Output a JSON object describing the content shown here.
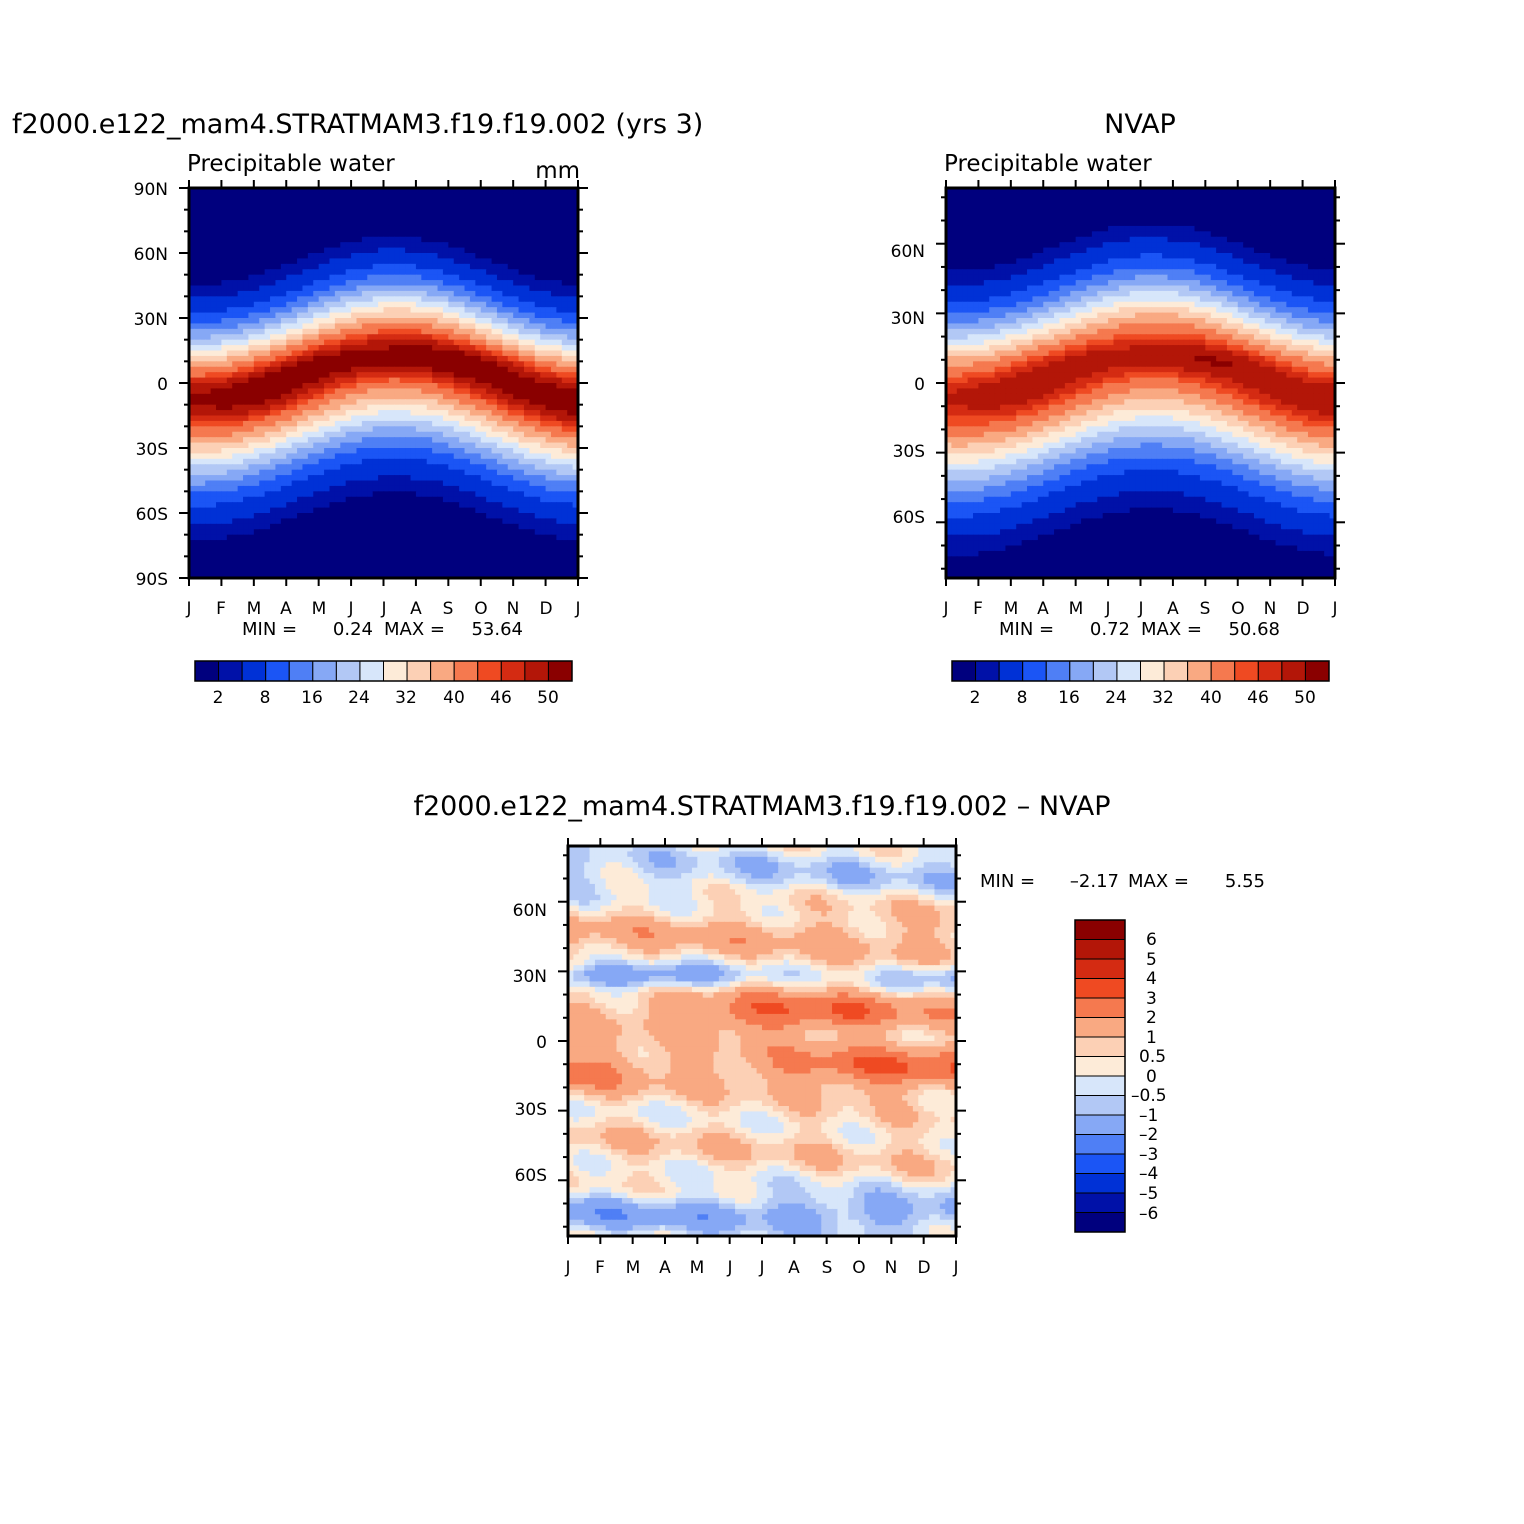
{
  "colors": {
    "panel_palette": [
      "#00007e",
      "#0011a8",
      "#0031d6",
      "#1b55f5",
      "#4f7ff5",
      "#86a8f5",
      "#b2c8f5",
      "#d7e6fa",
      "#fdebd8",
      "#fcd0b5",
      "#f9a982",
      "#f5794f",
      "#ef4a22",
      "#d42b12",
      "#b31608",
      "#8a0000"
    ],
    "diff_palette": [
      "#00007e",
      "#0011a8",
      "#0031d6",
      "#1b55f5",
      "#4f7ff5",
      "#86a8f5",
      "#b2c8f5",
      "#d7e6fa",
      "#fdebd8",
      "#fcd0b5",
      "#f9a982",
      "#f5794f",
      "#ef4a22",
      "#d42b12",
      "#b31608",
      "#8a0000"
    ]
  },
  "chart_data": [
    {
      "type": "heatmap",
      "id": "model",
      "title": "f2000.e122_mam4.STRATMAM3.f19.f19.002 (yrs 3)",
      "subtitle": "Precipitable  water",
      "units": "mm",
      "x_tick_labels": [
        "J",
        "F",
        "M",
        "A",
        "M",
        "J",
        "J",
        "A",
        "S",
        "O",
        "N",
        "D",
        "J"
      ],
      "y_tick_labels": [
        "90N",
        "60N",
        "30N",
        "0",
        "30S",
        "60S",
        "90S"
      ],
      "ylim": [
        -90,
        90
      ],
      "min_label": "MIN =",
      "min_value": "0.24",
      "max_label": "MAX =",
      "max_value": "53.64",
      "colorbar_labels": [
        "2",
        "8",
        "16",
        "24",
        "32",
        "40",
        "46",
        "50"
      ],
      "field": {
        "base": 50.5,
        "peak_lat": 3,
        "seasonal_shift": 11,
        "width": 21,
        "ns_asym": 0.6,
        "min": 0.24,
        "max": 53.64
      }
    },
    {
      "type": "heatmap",
      "id": "obs",
      "title": "NVAP",
      "subtitle": "Precipitable  water",
      "x_tick_labels": [
        "J",
        "F",
        "M",
        "A",
        "M",
        "J",
        "J",
        "A",
        "S",
        "O",
        "N",
        "D",
        "J"
      ],
      "y_tick_labels": [
        "60N",
        "30N",
        "0",
        "30S",
        "60S"
      ],
      "ylim": [
        -84,
        84
      ],
      "min_label": "MIN =",
      "min_value": "0.72",
      "max_label": "MAX =",
      "max_value": "50.68",
      "colorbar_labels": [
        "2",
        "8",
        "16",
        "24",
        "32",
        "40",
        "46",
        "50"
      ],
      "field": {
        "base": 48.5,
        "peak_lat": 3,
        "seasonal_shift": 10,
        "width": 22,
        "ns_asym": 0.6,
        "min": 0.72,
        "max": 50.68
      }
    },
    {
      "type": "heatmap",
      "id": "diff",
      "title": "f2000.e122_mam4.STRATMAM3.f19.f19.002  –  NVAP",
      "x_tick_labels": [
        "J",
        "F",
        "M",
        "A",
        "M",
        "J",
        "J",
        "A",
        "S",
        "O",
        "N",
        "D",
        "J"
      ],
      "y_tick_labels": [
        "60N",
        "30N",
        "0",
        "30S",
        "60S"
      ],
      "ylim": [
        -84,
        84
      ],
      "min_label": "MIN =",
      "min_value": "–2.17",
      "max_label": "MAX =",
      "max_value": "5.55",
      "colorbar_labels": [
        "6",
        "5",
        "4",
        "3",
        "2",
        "1",
        "0.5",
        "0",
        "–0.5",
        "–1",
        "–2",
        "–3",
        "–4",
        "–5",
        "–6"
      ],
      "levels": [
        -6,
        -5,
        -4,
        -3,
        -2,
        -1,
        -0.5,
        0,
        0.5,
        1,
        2,
        3,
        4,
        5,
        6
      ]
    }
  ]
}
